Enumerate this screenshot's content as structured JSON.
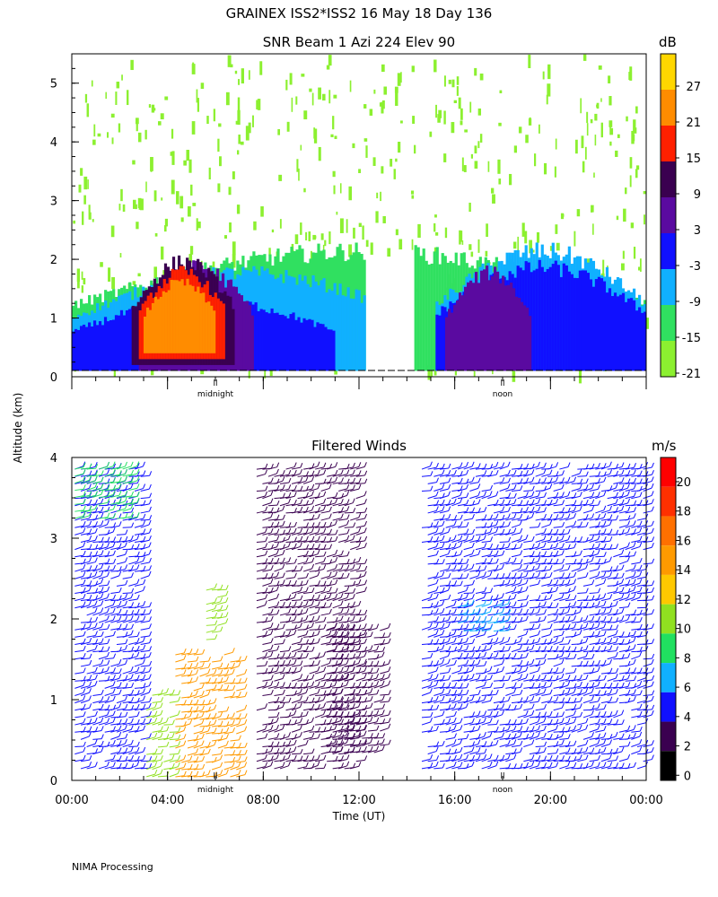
{
  "page": {
    "title": "GRAINEX ISS2*ISS2  16 May 18 Day 136",
    "ylabel": "Altitude (km)",
    "xlabel": "Time (UT)",
    "footer": "NIMA Processing"
  },
  "chart_data": [
    {
      "type": "heatmap",
      "title": "SNR Beam 1 Azi 224 Elev 90",
      "xlabel": "Time (UT)",
      "ylabel": "Altitude (km)",
      "xlim": [
        0,
        24
      ],
      "ylim": [
        0,
        5.5
      ],
      "yticks": [
        0,
        1,
        2,
        3,
        4,
        5
      ],
      "marker_labels": [
        {
          "label": "midnight",
          "x": 6
        },
        {
          "label": "noon",
          "x": 18
        }
      ],
      "colorbar": {
        "unit": "dB",
        "ticks": [
          27,
          21,
          15,
          9,
          3,
          -3,
          -9,
          -15,
          -21
        ],
        "colors": [
          "#ffd700",
          "#ff8c00",
          "#ff2000",
          "#3a0050",
          "#5a0aa0",
          "#1010ff",
          "#10b0ff",
          "#30e060",
          "#8cf030"
        ]
      },
      "regions": [
        {
          "x": [
            0,
            24
          ],
          "y": [
            0.1,
            5.5
          ],
          "level": -21
        },
        {
          "x": [
            0,
            24
          ],
          "y": [
            0.1,
            2.3
          ],
          "level": -15
        },
        {
          "x": [
            0,
            14.2
          ],
          "y": [
            0.1,
            1.9
          ],
          "level": -9
        },
        {
          "x": [
            15.2,
            24
          ],
          "y": [
            0.1,
            2.3
          ],
          "level": -9
        },
        {
          "x": [
            0,
            11
          ],
          "y": [
            0.1,
            1.4
          ],
          "level": -3
        },
        {
          "x": [
            15.2,
            24
          ],
          "y": [
            0.1,
            2.0
          ],
          "level": -3
        },
        {
          "x": [
            2.8,
            7.6
          ],
          "y": [
            0.1,
            2.0
          ],
          "level": 3
        },
        {
          "x": [
            15.6,
            19.2
          ],
          "y": [
            0.1,
            1.9
          ],
          "level": 3
        },
        {
          "x": [
            2.5,
            6.8
          ],
          "y": [
            0.2,
            2.1
          ],
          "level": 9
        },
        {
          "x": [
            2.8,
            6.4
          ],
          "y": [
            0.3,
            1.9
          ],
          "level": 15
        },
        {
          "x": [
            3.0,
            6.0
          ],
          "y": [
            0.4,
            1.7
          ],
          "level": 21
        }
      ],
      "gap": {
        "x": [
          12.2,
          14.2
        ]
      }
    },
    {
      "type": "scatter",
      "title": "Filtered Winds",
      "xlabel": "Time (UT)",
      "ylabel": "Altitude (km)",
      "xlim": [
        0,
        24
      ],
      "ylim": [
        0,
        4
      ],
      "xticks": [
        "00:00",
        "04:00",
        "08:00",
        "12:00",
        "16:00",
        "20:00",
        "00:00"
      ],
      "yticks": [
        0,
        1,
        2,
        3,
        4
      ],
      "marker_labels": [
        {
          "label": "midnight",
          "x": 6
        },
        {
          "label": "noon",
          "x": 18
        }
      ],
      "colorbar": {
        "unit": "m/s",
        "ticks": [
          20,
          18,
          16,
          14,
          12,
          10,
          8,
          6,
          4,
          2,
          0
        ],
        "colors": [
          "#ff0000",
          "#ff3000",
          "#ff7000",
          "#ff9a00",
          "#ffc800",
          "#90e020",
          "#20e060",
          "#10b0ff",
          "#1010ff",
          "#3a0050",
          "#000000"
        ]
      },
      "wind_groups": [
        {
          "x": [
            0,
            3
          ],
          "y": [
            0.1,
            3.9
          ],
          "speed": 4
        },
        {
          "x": [
            0,
            2.5
          ],
          "y": [
            3.2,
            3.9
          ],
          "speed": 7
        },
        {
          "x": [
            3,
            4.2
          ],
          "y": [
            0,
            1.1
          ],
          "speed": 10
        },
        {
          "x": [
            4.2,
            7
          ],
          "y": [
            0,
            1.6
          ],
          "speed": 13
        },
        {
          "x": [
            5.5,
            6.2
          ],
          "y": [
            1.7,
            2.4
          ],
          "speed": 9
        },
        {
          "x": [
            7.6,
            12
          ],
          "y": [
            0.1,
            3.9
          ],
          "speed": 2
        },
        {
          "x": [
            10.5,
            13
          ],
          "y": [
            0.3,
            1.9
          ],
          "speed": 1
        },
        {
          "x": [
            14.5,
            24
          ],
          "y": [
            0.1,
            3.9
          ],
          "speed": 3
        },
        {
          "x": [
            16,
            18
          ],
          "y": [
            1.8,
            2.2
          ],
          "speed": 6
        }
      ]
    }
  ]
}
